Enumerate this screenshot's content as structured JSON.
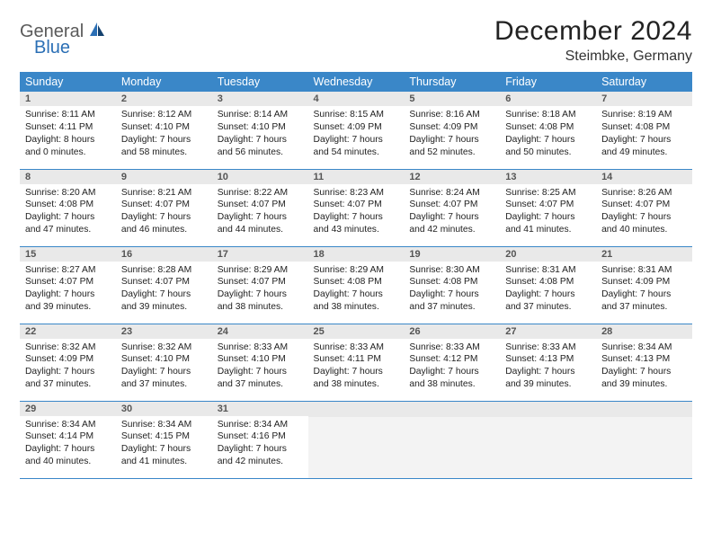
{
  "logo": {
    "part1": "General",
    "part2": "Blue"
  },
  "title": "December 2024",
  "location": "Steimbke, Germany",
  "colors": {
    "header_bg": "#3a87c8",
    "header_text": "#ffffff",
    "daynum_bg": "#e9e9e9",
    "border": "#3a87c8",
    "logo_gray": "#5a5a5a",
    "logo_blue": "#2b6fb5"
  },
  "weekdays": [
    "Sunday",
    "Monday",
    "Tuesday",
    "Wednesday",
    "Thursday",
    "Friday",
    "Saturday"
  ],
  "days": [
    {
      "n": "1",
      "sunrise": "Sunrise: 8:11 AM",
      "sunset": "Sunset: 4:11 PM",
      "daylight": "Daylight: 8 hours and 0 minutes."
    },
    {
      "n": "2",
      "sunrise": "Sunrise: 8:12 AM",
      "sunset": "Sunset: 4:10 PM",
      "daylight": "Daylight: 7 hours and 58 minutes."
    },
    {
      "n": "3",
      "sunrise": "Sunrise: 8:14 AM",
      "sunset": "Sunset: 4:10 PM",
      "daylight": "Daylight: 7 hours and 56 minutes."
    },
    {
      "n": "4",
      "sunrise": "Sunrise: 8:15 AM",
      "sunset": "Sunset: 4:09 PM",
      "daylight": "Daylight: 7 hours and 54 minutes."
    },
    {
      "n": "5",
      "sunrise": "Sunrise: 8:16 AM",
      "sunset": "Sunset: 4:09 PM",
      "daylight": "Daylight: 7 hours and 52 minutes."
    },
    {
      "n": "6",
      "sunrise": "Sunrise: 8:18 AM",
      "sunset": "Sunset: 4:08 PM",
      "daylight": "Daylight: 7 hours and 50 minutes."
    },
    {
      "n": "7",
      "sunrise": "Sunrise: 8:19 AM",
      "sunset": "Sunset: 4:08 PM",
      "daylight": "Daylight: 7 hours and 49 minutes."
    },
    {
      "n": "8",
      "sunrise": "Sunrise: 8:20 AM",
      "sunset": "Sunset: 4:08 PM",
      "daylight": "Daylight: 7 hours and 47 minutes."
    },
    {
      "n": "9",
      "sunrise": "Sunrise: 8:21 AM",
      "sunset": "Sunset: 4:07 PM",
      "daylight": "Daylight: 7 hours and 46 minutes."
    },
    {
      "n": "10",
      "sunrise": "Sunrise: 8:22 AM",
      "sunset": "Sunset: 4:07 PM",
      "daylight": "Daylight: 7 hours and 44 minutes."
    },
    {
      "n": "11",
      "sunrise": "Sunrise: 8:23 AM",
      "sunset": "Sunset: 4:07 PM",
      "daylight": "Daylight: 7 hours and 43 minutes."
    },
    {
      "n": "12",
      "sunrise": "Sunrise: 8:24 AM",
      "sunset": "Sunset: 4:07 PM",
      "daylight": "Daylight: 7 hours and 42 minutes."
    },
    {
      "n": "13",
      "sunrise": "Sunrise: 8:25 AM",
      "sunset": "Sunset: 4:07 PM",
      "daylight": "Daylight: 7 hours and 41 minutes."
    },
    {
      "n": "14",
      "sunrise": "Sunrise: 8:26 AM",
      "sunset": "Sunset: 4:07 PM",
      "daylight": "Daylight: 7 hours and 40 minutes."
    },
    {
      "n": "15",
      "sunrise": "Sunrise: 8:27 AM",
      "sunset": "Sunset: 4:07 PM",
      "daylight": "Daylight: 7 hours and 39 minutes."
    },
    {
      "n": "16",
      "sunrise": "Sunrise: 8:28 AM",
      "sunset": "Sunset: 4:07 PM",
      "daylight": "Daylight: 7 hours and 39 minutes."
    },
    {
      "n": "17",
      "sunrise": "Sunrise: 8:29 AM",
      "sunset": "Sunset: 4:07 PM",
      "daylight": "Daylight: 7 hours and 38 minutes."
    },
    {
      "n": "18",
      "sunrise": "Sunrise: 8:29 AM",
      "sunset": "Sunset: 4:08 PM",
      "daylight": "Daylight: 7 hours and 38 minutes."
    },
    {
      "n": "19",
      "sunrise": "Sunrise: 8:30 AM",
      "sunset": "Sunset: 4:08 PM",
      "daylight": "Daylight: 7 hours and 37 minutes."
    },
    {
      "n": "20",
      "sunrise": "Sunrise: 8:31 AM",
      "sunset": "Sunset: 4:08 PM",
      "daylight": "Daylight: 7 hours and 37 minutes."
    },
    {
      "n": "21",
      "sunrise": "Sunrise: 8:31 AM",
      "sunset": "Sunset: 4:09 PM",
      "daylight": "Daylight: 7 hours and 37 minutes."
    },
    {
      "n": "22",
      "sunrise": "Sunrise: 8:32 AM",
      "sunset": "Sunset: 4:09 PM",
      "daylight": "Daylight: 7 hours and 37 minutes."
    },
    {
      "n": "23",
      "sunrise": "Sunrise: 8:32 AM",
      "sunset": "Sunset: 4:10 PM",
      "daylight": "Daylight: 7 hours and 37 minutes."
    },
    {
      "n": "24",
      "sunrise": "Sunrise: 8:33 AM",
      "sunset": "Sunset: 4:10 PM",
      "daylight": "Daylight: 7 hours and 37 minutes."
    },
    {
      "n": "25",
      "sunrise": "Sunrise: 8:33 AM",
      "sunset": "Sunset: 4:11 PM",
      "daylight": "Daylight: 7 hours and 38 minutes."
    },
    {
      "n": "26",
      "sunrise": "Sunrise: 8:33 AM",
      "sunset": "Sunset: 4:12 PM",
      "daylight": "Daylight: 7 hours and 38 minutes."
    },
    {
      "n": "27",
      "sunrise": "Sunrise: 8:33 AM",
      "sunset": "Sunset: 4:13 PM",
      "daylight": "Daylight: 7 hours and 39 minutes."
    },
    {
      "n": "28",
      "sunrise": "Sunrise: 8:34 AM",
      "sunset": "Sunset: 4:13 PM",
      "daylight": "Daylight: 7 hours and 39 minutes."
    },
    {
      "n": "29",
      "sunrise": "Sunrise: 8:34 AM",
      "sunset": "Sunset: 4:14 PM",
      "daylight": "Daylight: 7 hours and 40 minutes."
    },
    {
      "n": "30",
      "sunrise": "Sunrise: 8:34 AM",
      "sunset": "Sunset: 4:15 PM",
      "daylight": "Daylight: 7 hours and 41 minutes."
    },
    {
      "n": "31",
      "sunrise": "Sunrise: 8:34 AM",
      "sunset": "Sunset: 4:16 PM",
      "daylight": "Daylight: 7 hours and 42 minutes."
    }
  ],
  "layout": {
    "start_weekday": 0,
    "total_cells": 35
  }
}
